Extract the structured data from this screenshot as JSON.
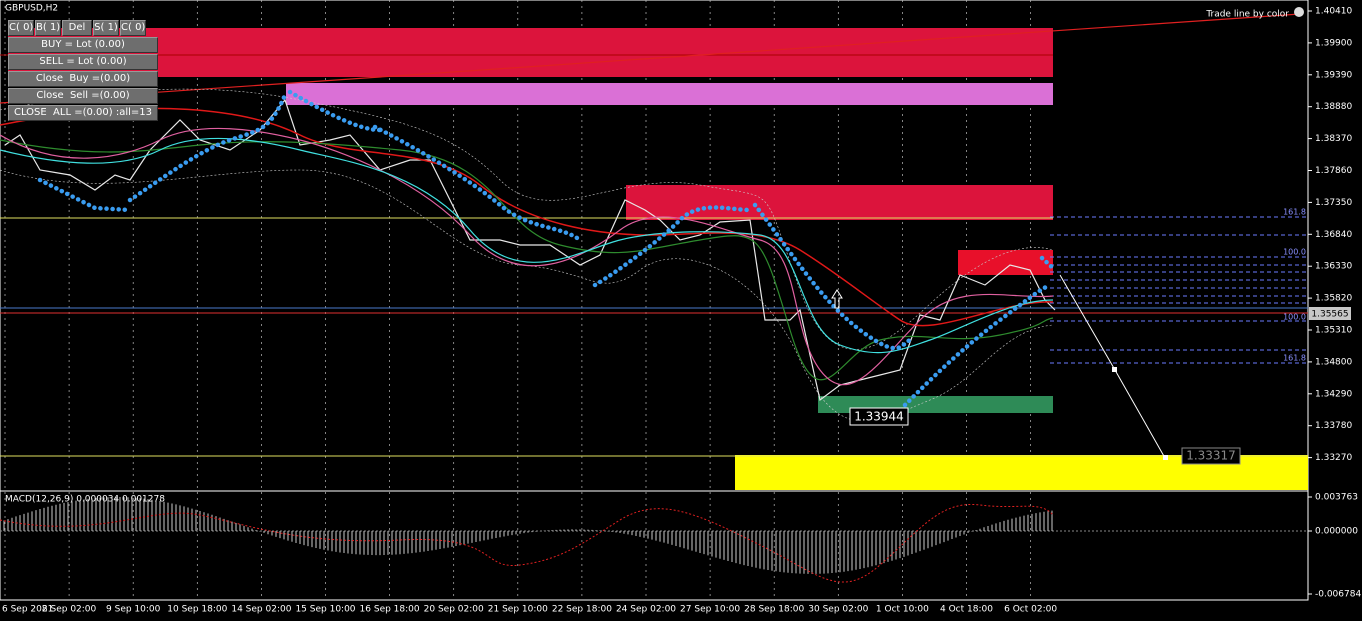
{
  "window": {
    "symbol": "GBPUSD,H2",
    "trade_line_label": "Trade line by color"
  },
  "panel": {
    "top_buttons": [
      "C( 0)",
      "B( 1)",
      "Del",
      "S( 1)",
      "C( 0)"
    ],
    "buttons": [
      "BUY = Lot (0.00)",
      "SELL = Lot (0.00)",
      "Close  Buy =(0.00)",
      "Close  Sell =(0.00)",
      "CLOSE  ALL =(0.00) :all=13"
    ]
  },
  "price_axis": [
    "1.40410",
    "1.39900",
    "1.39390",
    "1.38880",
    "1.38370",
    "1.37860",
    "1.37350",
    "1.36840",
    "1.36330",
    "1.35820",
    "1.35310",
    "1.34800",
    "1.34290",
    "1.33780",
    "1.33270"
  ],
  "current_price": "1.35565",
  "low_label": "1.33944",
  "target_label": "1.33317",
  "fib_labels": [
    "161.8",
    "100.0",
    "100.0",
    "161.8"
  ],
  "time_axis": [
    "6 Sep 2021",
    "8 Sep 02:00",
    "9 Sep 10:00",
    "10 Sep 18:00",
    "14 Sep 02:00",
    "15 Sep 10:00",
    "16 Sep 18:00",
    "20 Sep 02:00",
    "21 Sep 10:00",
    "22 Sep 18:00",
    "24 Sep 02:00",
    "27 Sep 10:00",
    "28 Sep 18:00",
    "30 Sep 02:00",
    "1 Oct 10:00",
    "4 Oct 18:00",
    "6 Oct 02:00"
  ],
  "macd": {
    "label": "MACD(12,26,9) 0.000034 0.001278",
    "axis": [
      "0.003763",
      "0.000000",
      "-0.006784"
    ]
  }
}
